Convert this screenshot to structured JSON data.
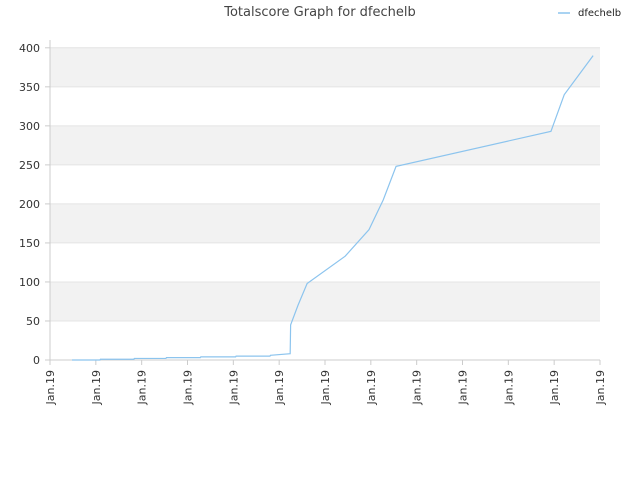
{
  "chart_data": {
    "type": "line",
    "title": "Totalscore Graph for dfechelb",
    "x": [
      0.48,
      1.09,
      1.1,
      1.83,
      1.84,
      2.53,
      2.54,
      3.28,
      3.29,
      4.05,
      4.06,
      4.8,
      4.81,
      5.24,
      5.25,
      5.41,
      5.61,
      6.44,
      6.96,
      7.27,
      7.55,
      10.93,
      11.22,
      11.85
    ],
    "series": [
      {
        "name": "dfechelb",
        "color": "#8cc4ee",
        "values": [
          0,
          0,
          1,
          1,
          2,
          2,
          3,
          3,
          4,
          4,
          5,
          5,
          6,
          8,
          45,
          70,
          98,
          133,
          167,
          205,
          248,
          293,
          340,
          390
        ]
      }
    ],
    "xlim": [
      0,
      12
    ],
    "xticks": [
      {
        "value": 0,
        "label": "Jan.19"
      },
      {
        "value": 1,
        "label": "Jan.19"
      },
      {
        "value": 2,
        "label": "Jan.19"
      },
      {
        "value": 3,
        "label": "Jan.19"
      },
      {
        "value": 4,
        "label": "Jan.19"
      },
      {
        "value": 5,
        "label": "Jan.19"
      },
      {
        "value": 6,
        "label": "Jan.19"
      },
      {
        "value": 7,
        "label": "Jan.19"
      },
      {
        "value": 8,
        "label": "Jan.19"
      },
      {
        "value": 9,
        "label": "Jan.19"
      },
      {
        "value": 10,
        "label": "Jan.19"
      },
      {
        "value": 11,
        "label": "Jan.19"
      },
      {
        "value": 12,
        "label": "Jan.19"
      }
    ],
    "ylim": [
      0,
      410
    ],
    "yticks": [
      0,
      50,
      100,
      150,
      200,
      250,
      300,
      350,
      400
    ],
    "grid": true,
    "legend": "top-right"
  }
}
